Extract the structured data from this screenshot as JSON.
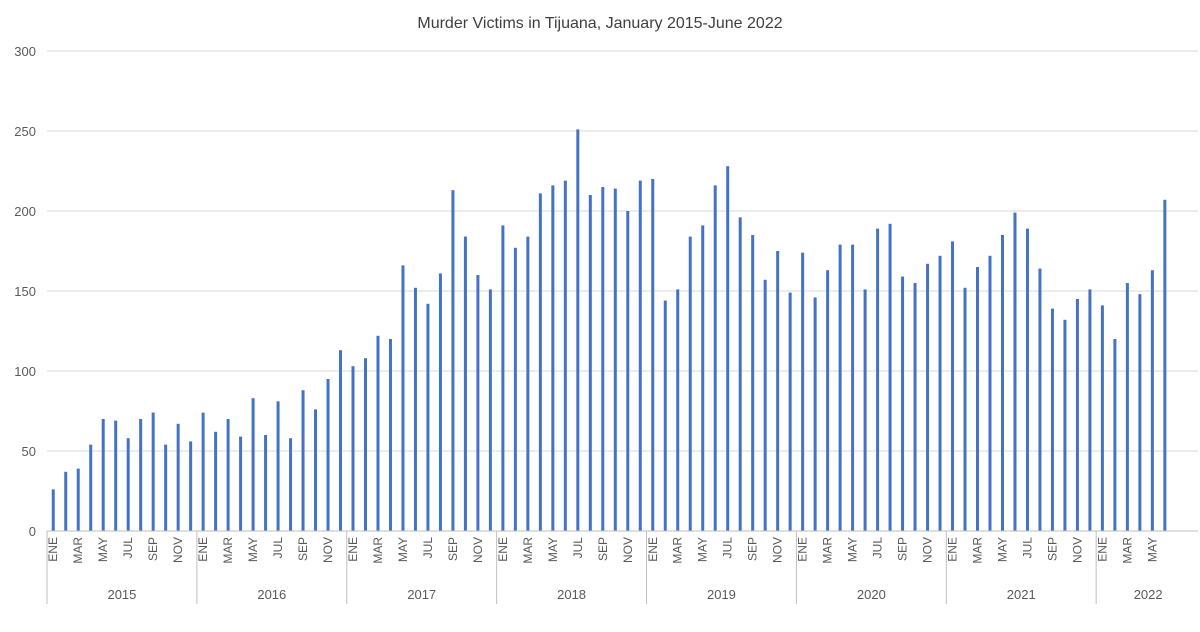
{
  "chart_data": {
    "type": "bar",
    "title": "Murder Victims in Tijuana, January 2015-June 2022",
    "xlabel": "",
    "ylabel": "",
    "ylim": [
      0,
      300
    ],
    "yticks": [
      0,
      50,
      100,
      150,
      200,
      250,
      300
    ],
    "grid": true,
    "legend": "none",
    "bar_color": "#4472c4",
    "years": [
      "2015",
      "2016",
      "2017",
      "2018",
      "2019",
      "2020",
      "2021",
      "2022"
    ],
    "month_labels": [
      "ENE",
      "MAR",
      "MAY",
      "JUL",
      "SEP",
      "NOV"
    ],
    "values": [
      [
        26,
        37,
        39,
        54,
        70,
        69,
        58,
        70,
        74,
        54,
        67,
        56
      ],
      [
        74,
        62,
        70,
        59,
        83,
        60,
        81,
        58,
        88,
        76,
        95,
        113
      ],
      [
        103,
        108,
        122,
        120,
        166,
        152,
        142,
        161,
        213,
        184,
        160,
        151
      ],
      [
        191,
        177,
        184,
        211,
        216,
        219,
        251,
        210,
        215,
        214,
        200,
        219
      ],
      [
        220,
        144,
        151,
        184,
        191,
        216,
        228,
        196,
        185,
        157,
        175,
        149
      ],
      [
        174,
        146,
        163,
        179,
        179,
        151,
        189,
        192,
        159,
        155,
        167,
        172
      ],
      [
        181,
        152,
        165,
        172,
        185,
        199,
        189,
        164,
        139,
        132,
        145,
        151
      ],
      [
        141,
        120,
        155,
        148,
        163,
        207
      ]
    ]
  }
}
